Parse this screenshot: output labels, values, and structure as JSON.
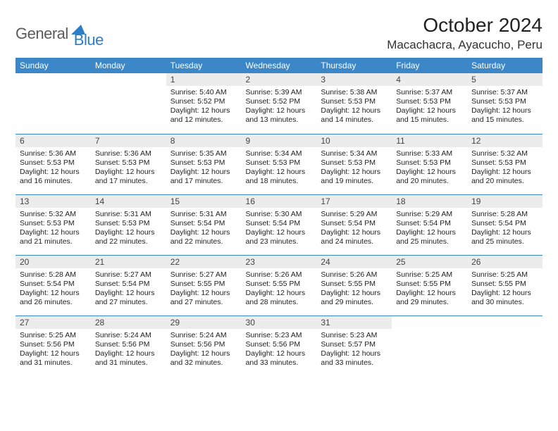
{
  "brand": {
    "part1": "General",
    "part2": "Blue"
  },
  "title": "October 2024",
  "location": "Macachacra, Ayacucho, Peru",
  "colors": {
    "header_bg": "#3c87c7",
    "header_text": "#ffffff",
    "daynum_bg": "#ececec",
    "row_border": "#3c87c7",
    "logo_gray": "#5b5b5b",
    "logo_blue": "#2d7dc7"
  },
  "day_labels": [
    "Sunday",
    "Monday",
    "Tuesday",
    "Wednesday",
    "Thursday",
    "Friday",
    "Saturday"
  ],
  "weeks": [
    [
      {
        "n": "",
        "sr": "",
        "ss": "",
        "dl": ""
      },
      {
        "n": "",
        "sr": "",
        "ss": "",
        "dl": ""
      },
      {
        "n": "1",
        "sr": "Sunrise: 5:40 AM",
        "ss": "Sunset: 5:52 PM",
        "dl": "Daylight: 12 hours and 12 minutes."
      },
      {
        "n": "2",
        "sr": "Sunrise: 5:39 AM",
        "ss": "Sunset: 5:52 PM",
        "dl": "Daylight: 12 hours and 13 minutes."
      },
      {
        "n": "3",
        "sr": "Sunrise: 5:38 AM",
        "ss": "Sunset: 5:53 PM",
        "dl": "Daylight: 12 hours and 14 minutes."
      },
      {
        "n": "4",
        "sr": "Sunrise: 5:37 AM",
        "ss": "Sunset: 5:53 PM",
        "dl": "Daylight: 12 hours and 15 minutes."
      },
      {
        "n": "5",
        "sr": "Sunrise: 5:37 AM",
        "ss": "Sunset: 5:53 PM",
        "dl": "Daylight: 12 hours and 15 minutes."
      }
    ],
    [
      {
        "n": "6",
        "sr": "Sunrise: 5:36 AM",
        "ss": "Sunset: 5:53 PM",
        "dl": "Daylight: 12 hours and 16 minutes."
      },
      {
        "n": "7",
        "sr": "Sunrise: 5:36 AM",
        "ss": "Sunset: 5:53 PM",
        "dl": "Daylight: 12 hours and 17 minutes."
      },
      {
        "n": "8",
        "sr": "Sunrise: 5:35 AM",
        "ss": "Sunset: 5:53 PM",
        "dl": "Daylight: 12 hours and 17 minutes."
      },
      {
        "n": "9",
        "sr": "Sunrise: 5:34 AM",
        "ss": "Sunset: 5:53 PM",
        "dl": "Daylight: 12 hours and 18 minutes."
      },
      {
        "n": "10",
        "sr": "Sunrise: 5:34 AM",
        "ss": "Sunset: 5:53 PM",
        "dl": "Daylight: 12 hours and 19 minutes."
      },
      {
        "n": "11",
        "sr": "Sunrise: 5:33 AM",
        "ss": "Sunset: 5:53 PM",
        "dl": "Daylight: 12 hours and 20 minutes."
      },
      {
        "n": "12",
        "sr": "Sunrise: 5:32 AM",
        "ss": "Sunset: 5:53 PM",
        "dl": "Daylight: 12 hours and 20 minutes."
      }
    ],
    [
      {
        "n": "13",
        "sr": "Sunrise: 5:32 AM",
        "ss": "Sunset: 5:53 PM",
        "dl": "Daylight: 12 hours and 21 minutes."
      },
      {
        "n": "14",
        "sr": "Sunrise: 5:31 AM",
        "ss": "Sunset: 5:53 PM",
        "dl": "Daylight: 12 hours and 22 minutes."
      },
      {
        "n": "15",
        "sr": "Sunrise: 5:31 AM",
        "ss": "Sunset: 5:54 PM",
        "dl": "Daylight: 12 hours and 22 minutes."
      },
      {
        "n": "16",
        "sr": "Sunrise: 5:30 AM",
        "ss": "Sunset: 5:54 PM",
        "dl": "Daylight: 12 hours and 23 minutes."
      },
      {
        "n": "17",
        "sr": "Sunrise: 5:29 AM",
        "ss": "Sunset: 5:54 PM",
        "dl": "Daylight: 12 hours and 24 minutes."
      },
      {
        "n": "18",
        "sr": "Sunrise: 5:29 AM",
        "ss": "Sunset: 5:54 PM",
        "dl": "Daylight: 12 hours and 25 minutes."
      },
      {
        "n": "19",
        "sr": "Sunrise: 5:28 AM",
        "ss": "Sunset: 5:54 PM",
        "dl": "Daylight: 12 hours and 25 minutes."
      }
    ],
    [
      {
        "n": "20",
        "sr": "Sunrise: 5:28 AM",
        "ss": "Sunset: 5:54 PM",
        "dl": "Daylight: 12 hours and 26 minutes."
      },
      {
        "n": "21",
        "sr": "Sunrise: 5:27 AM",
        "ss": "Sunset: 5:54 PM",
        "dl": "Daylight: 12 hours and 27 minutes."
      },
      {
        "n": "22",
        "sr": "Sunrise: 5:27 AM",
        "ss": "Sunset: 5:55 PM",
        "dl": "Daylight: 12 hours and 27 minutes."
      },
      {
        "n": "23",
        "sr": "Sunrise: 5:26 AM",
        "ss": "Sunset: 5:55 PM",
        "dl": "Daylight: 12 hours and 28 minutes."
      },
      {
        "n": "24",
        "sr": "Sunrise: 5:26 AM",
        "ss": "Sunset: 5:55 PM",
        "dl": "Daylight: 12 hours and 29 minutes."
      },
      {
        "n": "25",
        "sr": "Sunrise: 5:25 AM",
        "ss": "Sunset: 5:55 PM",
        "dl": "Daylight: 12 hours and 29 minutes."
      },
      {
        "n": "26",
        "sr": "Sunrise: 5:25 AM",
        "ss": "Sunset: 5:55 PM",
        "dl": "Daylight: 12 hours and 30 minutes."
      }
    ],
    [
      {
        "n": "27",
        "sr": "Sunrise: 5:25 AM",
        "ss": "Sunset: 5:56 PM",
        "dl": "Daylight: 12 hours and 31 minutes."
      },
      {
        "n": "28",
        "sr": "Sunrise: 5:24 AM",
        "ss": "Sunset: 5:56 PM",
        "dl": "Daylight: 12 hours and 31 minutes."
      },
      {
        "n": "29",
        "sr": "Sunrise: 5:24 AM",
        "ss": "Sunset: 5:56 PM",
        "dl": "Daylight: 12 hours and 32 minutes."
      },
      {
        "n": "30",
        "sr": "Sunrise: 5:23 AM",
        "ss": "Sunset: 5:56 PM",
        "dl": "Daylight: 12 hours and 33 minutes."
      },
      {
        "n": "31",
        "sr": "Sunrise: 5:23 AM",
        "ss": "Sunset: 5:57 PM",
        "dl": "Daylight: 12 hours and 33 minutes."
      },
      {
        "n": "",
        "sr": "",
        "ss": "",
        "dl": ""
      },
      {
        "n": "",
        "sr": "",
        "ss": "",
        "dl": ""
      }
    ]
  ]
}
